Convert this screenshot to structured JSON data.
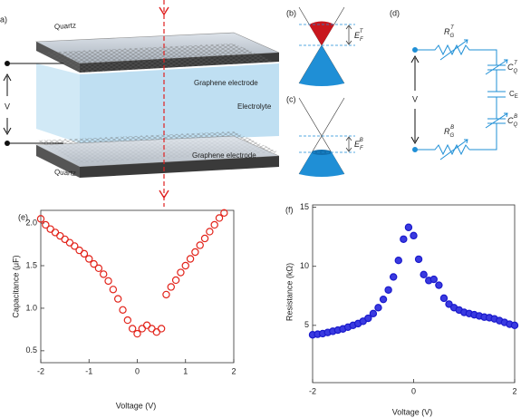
{
  "diagram": {
    "a": {
      "label": "a)",
      "quartz_top": "Quartz",
      "electrode_top": "Graphene electrode",
      "electrolyte": "Electrolyte",
      "electrode_bottom": "Graphene electrode",
      "quartz_bottom": "Quartz",
      "voltage": "V"
    },
    "b": {
      "label": "(b)",
      "energy": {
        "base": "E",
        "sub": "F",
        "sup": "T"
      }
    },
    "c": {
      "label": "(c)",
      "energy": {
        "base": "E",
        "sub": "F",
        "sup": "B"
      }
    },
    "d": {
      "label": "(d)",
      "voltage": "V",
      "r_top": {
        "base": "R",
        "sub": "G",
        "sup": "T"
      },
      "c_top": {
        "base": "C",
        "sub": "Q",
        "sup": "T"
      },
      "c_e": {
        "base": "C",
        "sub": "E"
      },
      "r_bottom": {
        "base": "R",
        "sub": "G",
        "sup": "B"
      },
      "c_bottom": {
        "base": "C",
        "sub": "Q",
        "sup": "B"
      }
    }
  },
  "chart_data": [
    {
      "type": "scatter",
      "panel_label": "(e)",
      "x_label": "Voltage (V)",
      "y_label": "Capacitance (μF)",
      "color": "#e2231a",
      "marker_fill": "none",
      "x": [
        -2.0,
        -1.9,
        -1.8,
        -1.7,
        -1.6,
        -1.5,
        -1.4,
        -1.3,
        -1.2,
        -1.1,
        -1.0,
        -0.9,
        -0.8,
        -0.7,
        -0.6,
        -0.5,
        -0.4,
        -0.3,
        -0.2,
        -0.1,
        0.0,
        0.1,
        0.2,
        0.3,
        0.4,
        0.5,
        0.6,
        0.7,
        0.8,
        0.9,
        1.0,
        1.1,
        1.2,
        1.3,
        1.4,
        1.5,
        1.6,
        1.7,
        1.8
      ],
      "values": [
        2.05,
        1.98,
        1.93,
        1.89,
        1.85,
        1.81,
        1.77,
        1.73,
        1.68,
        1.64,
        1.58,
        1.52,
        1.47,
        1.4,
        1.32,
        1.22,
        1.11,
        0.98,
        0.86,
        0.76,
        0.7,
        0.76,
        0.8,
        0.76,
        0.72,
        0.76,
        1.16,
        1.25,
        1.33,
        1.42,
        1.5,
        1.58,
        1.66,
        1.74,
        1.82,
        1.9,
        1.98,
        2.06,
        2.12
      ],
      "xlim": [
        -2,
        2
      ],
      "xticks": [
        -2,
        -1,
        0,
        1,
        2
      ],
      "ylim": [
        0.36,
        2.15
      ],
      "yticks": [
        {
          "value": 0.5,
          "label": "0.5"
        },
        {
          "value": 1,
          "label": "1.0"
        },
        {
          "value": 1.5,
          "label": "1.5"
        },
        {
          "value": 2,
          "label": "2.0"
        }
      ]
    },
    {
      "type": "scatter",
      "panel_label": "(f)",
      "x_label": "Voltage (V)",
      "y_label": "Resistance (kΩ)",
      "color": "#1a1acc",
      "marker_fill": "#3a3ae0",
      "x": [
        -2.0,
        -1.9,
        -1.8,
        -1.7,
        -1.6,
        -1.5,
        -1.4,
        -1.3,
        -1.2,
        -1.1,
        -1.0,
        -0.9,
        -0.8,
        -0.7,
        -0.6,
        -0.5,
        -0.4,
        -0.3,
        -0.2,
        -0.1,
        0.0,
        0.1,
        0.2,
        0.3,
        0.4,
        0.5,
        0.6,
        0.7,
        0.8,
        0.9,
        1.0,
        1.1,
        1.2,
        1.3,
        1.4,
        1.5,
        1.6,
        1.7,
        1.8,
        1.9,
        2.0
      ],
      "values": [
        4.2,
        4.25,
        4.3,
        4.4,
        4.5,
        4.6,
        4.7,
        4.85,
        5.0,
        5.15,
        5.35,
        5.6,
        6.0,
        6.5,
        7.2,
        8.0,
        9.1,
        10.5,
        12.3,
        13.3,
        12.6,
        10.6,
        9.3,
        8.8,
        8.9,
        8.4,
        7.3,
        6.8,
        6.5,
        6.3,
        6.1,
        6.0,
        5.9,
        5.8,
        5.7,
        5.65,
        5.55,
        5.4,
        5.25,
        5.1,
        5.0
      ],
      "xlim": [
        -2,
        2
      ],
      "xticks": [
        -2,
        0,
        2
      ],
      "ylim": [
        0.15,
        15.2
      ],
      "yticks": [
        5,
        10,
        15
      ]
    }
  ]
}
